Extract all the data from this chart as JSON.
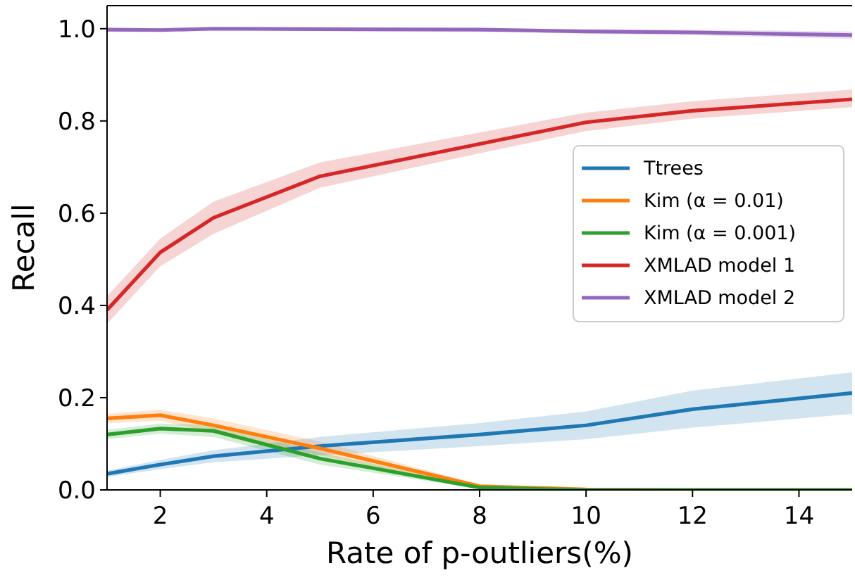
{
  "chart_data": {
    "type": "line",
    "xlabel": "Rate of p-outliers(%)",
    "ylabel": "Recall",
    "x": [
      1,
      2,
      3,
      5,
      8,
      10,
      12,
      15
    ],
    "xlim": [
      1,
      15
    ],
    "xticks": [
      2,
      4,
      6,
      8,
      10,
      12,
      14
    ],
    "ylim": [
      0,
      1.05
    ],
    "yticks": [
      {
        "value": 0,
        "label": "0.0"
      },
      0.2,
      0.4,
      0.6,
      0.8,
      {
        "value": 1,
        "label": "1.0"
      }
    ],
    "legend": "right",
    "grid": false,
    "series": [
      {
        "name": "Ttrees",
        "color": "#1f77b4",
        "values": [
          0.035,
          0.055,
          0.073,
          0.095,
          0.12,
          0.14,
          0.175,
          0.21
        ],
        "lower": [
          0.028,
          0.045,
          0.06,
          0.075,
          0.095,
          0.11,
          0.135,
          0.165
        ],
        "upper": [
          0.042,
          0.065,
          0.086,
          0.115,
          0.145,
          0.17,
          0.215,
          0.255
        ]
      },
      {
        "name": "Kim (α = 0.01)",
        "color": "#ff7f0e",
        "values": [
          0.155,
          0.162,
          0.14,
          0.09,
          0.008,
          0.001,
          0,
          0
        ],
        "lower": [
          0.145,
          0.15,
          0.125,
          0.075,
          0.004,
          0,
          0,
          0
        ],
        "upper": [
          0.165,
          0.174,
          0.155,
          0.105,
          0.012,
          0.002,
          0,
          0
        ]
      },
      {
        "name": "Kim (α = 0.001)",
        "color": "#2ca02c",
        "values": [
          0.12,
          0.133,
          0.128,
          0.068,
          0.005,
          0,
          0,
          0
        ],
        "lower": [
          0.11,
          0.122,
          0.115,
          0.055,
          0.002,
          0,
          0,
          0
        ],
        "upper": [
          0.13,
          0.144,
          0.141,
          0.081,
          0.008,
          0.001,
          0,
          0
        ]
      },
      {
        "name": "XMLAD model 1",
        "color": "#d62728",
        "values": [
          0.39,
          0.515,
          0.59,
          0.68,
          0.75,
          0.797,
          0.822,
          0.847
        ],
        "lower": [
          0.36,
          0.485,
          0.555,
          0.655,
          0.73,
          0.778,
          0.805,
          0.83
        ],
        "upper": [
          0.42,
          0.545,
          0.625,
          0.71,
          0.775,
          0.818,
          0.843,
          0.868
        ]
      },
      {
        "name": "XMLAD model 2",
        "color": "#9467bd",
        "values": [
          0.998,
          0.997,
          1.0,
          0.999,
          0.998,
          0.994,
          0.992,
          0.986
        ],
        "lower": [
          0.994,
          0.993,
          0.996,
          0.995,
          0.994,
          0.989,
          0.986,
          0.978
        ],
        "upper": [
          1.002,
          1.001,
          1.004,
          1.003,
          1.002,
          0.999,
          0.998,
          0.994
        ]
      }
    ]
  }
}
